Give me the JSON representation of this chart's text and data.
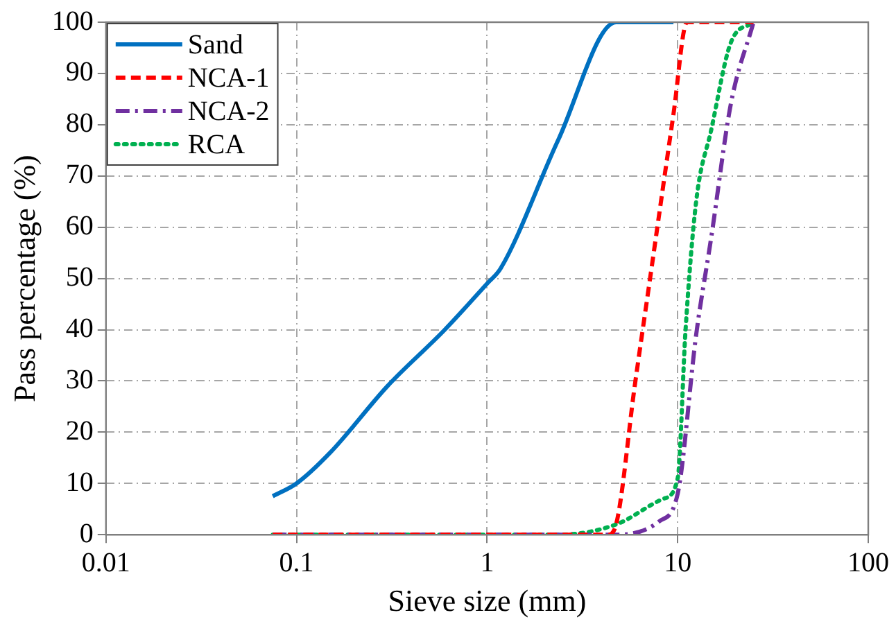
{
  "chart_data": {
    "type": "line",
    "xlabel": "Sieve size (mm)",
    "ylabel": "Pass percentage (%)",
    "log": "x",
    "xlim": [
      0.01,
      100
    ],
    "xticks": [
      0.01,
      0.1,
      1,
      10,
      100
    ],
    "ylim": [
      0,
      100
    ],
    "yticks": [
      0,
      10,
      20,
      30,
      40,
      50,
      60,
      70,
      80,
      90,
      100
    ],
    "grid": true,
    "legend": "top left",
    "marker": "none",
    "series": [
      {
        "name": "Sand",
        "color": "#0070c0",
        "line_style": "solid",
        "x": [
          0.075,
          0.1,
          0.15,
          0.3,
          0.6,
          1,
          1.18,
          2.36,
          4.75,
          9.5
        ],
        "values": [
          7.5,
          10,
          16,
          29,
          40,
          49,
          52,
          77,
          100,
          100
        ]
      },
      {
        "name": "NCA-1",
        "color": "#ff0000",
        "line_style": "dashed",
        "x": [
          0.075,
          2.36,
          4.3,
          4.75,
          5.95,
          7.1,
          9.5,
          11.2,
          25
        ],
        "values": [
          0,
          0,
          0,
          2,
          29,
          49,
          82,
          100,
          100
        ]
      },
      {
        "name": "NCA-2",
        "color": "#7030a0",
        "line_style": "dashdot",
        "x": [
          0.075,
          2.36,
          4.75,
          8,
          10,
          12.5,
          15,
          19,
          25
        ],
        "values": [
          0,
          0,
          0,
          2.6,
          8,
          39,
          58,
          84,
          100
        ]
      },
      {
        "name": "RCA",
        "color": "#00b050",
        "line_style": "dotted",
        "x": [
          0.075,
          2.36,
          4.75,
          8.4,
          10,
          11,
          12.5,
          15,
          19,
          25
        ],
        "values": [
          0,
          0,
          2,
          7,
          11,
          40,
          65,
          79,
          96,
          100
        ]
      }
    ]
  }
}
